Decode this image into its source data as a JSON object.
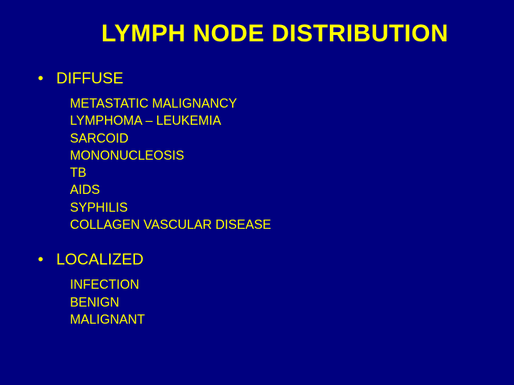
{
  "colors": {
    "background": "#000080",
    "text": "#ffff00"
  },
  "typography": {
    "title_fontsize": 34,
    "section_fontsize": 22,
    "item_fontsize": 18,
    "font_family": "Arial"
  },
  "title": "LYMPH NODE DISTRIBUTION",
  "sections": [
    {
      "bullet": "•",
      "heading": "DIFFUSE",
      "items": [
        "METASTATIC MALIGNANCY",
        "LYMPHOMA – LEUKEMIA",
        "SARCOID",
        "MONONUCLEOSIS",
        "TB",
        "AIDS",
        "SYPHILIS",
        "COLLAGEN VASCULAR DISEASE"
      ]
    },
    {
      "bullet": "•",
      "heading": "LOCALIZED",
      "items": [
        "INFECTION",
        "BENIGN",
        "MALIGNANT"
      ]
    }
  ]
}
